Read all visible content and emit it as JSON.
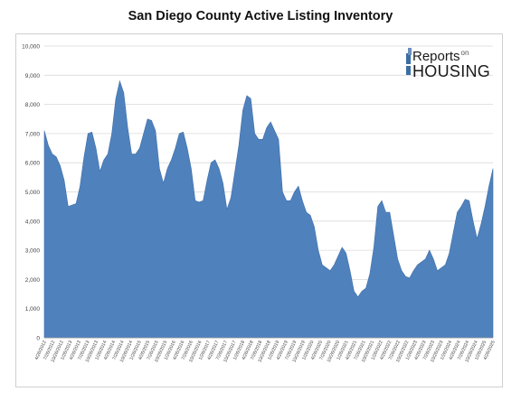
{
  "chart_data": {
    "type": "area",
    "title": "San Diego County Active Listing Inventory",
    "xlabel": "",
    "ylabel": "",
    "ylim": [
      0,
      10000
    ],
    "yticks": [
      0,
      1000,
      2000,
      3000,
      4000,
      5000,
      6000,
      7000,
      8000,
      9000,
      10000
    ],
    "ytick_labels": [
      "0",
      "1,000",
      "2,000",
      "3,000",
      "4,000",
      "5,000",
      "6,000",
      "7,000",
      "8,000",
      "9,000",
      "10,000"
    ],
    "xtick_labels": [
      "4/26/2012",
      "7/26/2012",
      "10/26/2012",
      "1/26/2013",
      "4/26/2013",
      "7/26/2013",
      "10/26/2013",
      "1/26/2014",
      "4/26/2014",
      "7/26/2014",
      "10/26/2014",
      "1/26/2015",
      "4/26/2015",
      "7/26/2015",
      "10/26/2015",
      "1/26/2016",
      "4/26/2016",
      "7/26/2016",
      "10/26/2016",
      "1/26/2017",
      "4/26/2017",
      "7/26/2017",
      "10/26/2017",
      "1/26/2018",
      "4/26/2018",
      "7/26/2018",
      "10/26/2018",
      "1/26/2019",
      "4/26/2019",
      "7/26/2019",
      "10/26/2019",
      "1/26/2020",
      "4/26/2020",
      "7/26/2020",
      "10/26/2020",
      "1/26/2021",
      "4/26/2021",
      "7/26/2021",
      "10/26/2021",
      "1/26/2022",
      "4/26/2022",
      "7/26/2022",
      "10/26/2022",
      "1/26/2023",
      "4/26/2023",
      "7/26/2023",
      "10/26/2023",
      "1/26/2024",
      "4/26/2024",
      "7/26/2024",
      "10/26/2024",
      "1/26/2025",
      "4/26/2025"
    ],
    "grid": "horizontal",
    "color": "#4f81bd",
    "series": [
      {
        "values": [
          7100,
          6600,
          6300,
          6200,
          5900,
          5400,
          4500,
          4550,
          4600,
          5200,
          6200,
          7000,
          7050,
          6500,
          5700,
          6100,
          6300,
          7000,
          8200,
          8800,
          8400,
          7200,
          6300,
          6300,
          6500,
          7000,
          7500,
          7450,
          7100,
          5800,
          5300,
          5800,
          6100,
          6500,
          7000,
          7050,
          6500,
          5800,
          4700,
          4650,
          4700,
          5400,
          6000,
          6100,
          5800,
          5300,
          4400,
          4800,
          5700,
          6600,
          7800,
          8300,
          8200,
          7000,
          6800,
          6800,
          7200,
          7400,
          7100,
          6800,
          5000,
          4700,
          4700,
          5000,
          5200,
          4700,
          4300,
          4200,
          3800,
          3000,
          2500,
          2400,
          2300,
          2500,
          2800,
          3100,
          2900,
          2300,
          1600,
          1400,
          1600,
          1700,
          2200,
          3100,
          4500,
          4700,
          4300,
          4300,
          3500,
          2700,
          2300,
          2100,
          2050,
          2300,
          2500,
          2600,
          2700,
          3000,
          2700,
          2300,
          2400,
          2500,
          2900,
          3600,
          4300,
          4500,
          4750,
          4700,
          4000,
          3400,
          3900,
          4500,
          5200,
          5800
        ]
      }
    ]
  },
  "logo": {
    "line1": "Reports",
    "line1_small": "on",
    "line2": "HOUSING"
  }
}
